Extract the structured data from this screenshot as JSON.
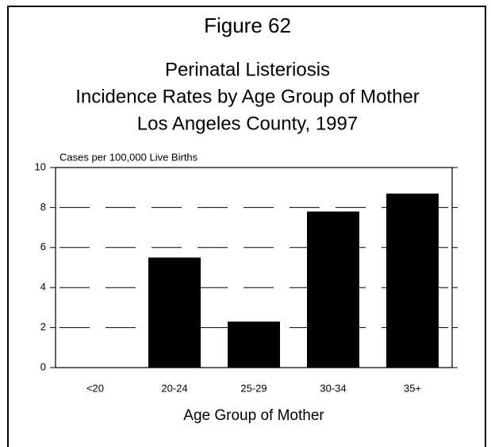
{
  "chart_data": {
    "type": "bar",
    "title": "Figure 62",
    "subtitle": [
      "Perinatal Listeriosis",
      "Incidence Rates by Age Group of Mother",
      "Los Angeles County, 1997"
    ],
    "y_label": "Cases per 100,000 Live Births",
    "x_label": "Age Group of Mother",
    "categories": [
      "<20",
      "20-24",
      "25-29",
      "30-34",
      "35+"
    ],
    "values": [
      0,
      5.5,
      2.3,
      7.8,
      8.7
    ],
    "color": "#000000",
    "ylim": [
      0,
      10
    ],
    "yticks": [
      0,
      2,
      4,
      6,
      8,
      10
    ],
    "grid": true
  }
}
